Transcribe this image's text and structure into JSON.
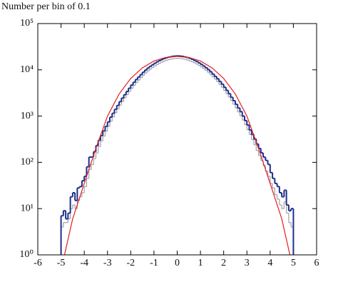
{
  "chart_data": {
    "type": "histogram",
    "title": "Number per bin of 0.1",
    "bins": [
      -5.0,
      -4.9,
      -4.8,
      -4.7,
      -4.6,
      -4.5,
      -4.4,
      -4.3,
      -4.2,
      -4.1,
      -4.0,
      -3.9,
      -3.8,
      -3.7,
      -3.6,
      -3.5,
      -3.4,
      -3.3,
      -3.2,
      -3.1,
      -3.0,
      -2.9,
      -2.8,
      -2.7,
      -2.6,
      -2.5,
      -2.4,
      -2.3,
      -2.2,
      -2.1,
      -2.0,
      -1.9,
      -1.8,
      -1.7,
      -1.6,
      -1.5,
      -1.4,
      -1.3,
      -1.2,
      -1.1,
      -1.0,
      -0.9,
      -0.8,
      -0.7,
      -0.6,
      -0.5,
      -0.4,
      -0.3,
      -0.2,
      -0.1,
      0.0,
      0.1,
      0.2,
      0.3,
      0.4,
      0.5,
      0.6,
      0.7,
      0.8,
      0.9,
      1.0,
      1.1,
      1.2,
      1.3,
      1.4,
      1.5,
      1.6,
      1.7,
      1.8,
      1.9,
      2.0,
      2.1,
      2.2,
      2.3,
      2.4,
      2.5,
      2.6,
      2.7,
      2.8,
      2.9,
      3.0,
      3.1,
      3.2,
      3.3,
      3.4,
      3.5,
      3.6,
      3.7,
      3.8,
      3.9,
      4.0,
      4.1,
      4.2,
      4.3,
      4.4,
      4.5,
      4.6,
      4.7,
      4.8,
      4.9,
      5.0
    ],
    "series": [
      {
        "color": "#1f2f8a",
        "values": [
          7,
          9,
          6,
          8,
          18,
          22,
          15,
          28,
          30,
          40,
          50,
          80,
          130,
          130,
          170,
          230,
          300,
          380,
          480,
          600,
          750,
          950,
          1150,
          1400,
          1700,
          2050,
          2450,
          2900,
          3400,
          4000,
          4700,
          5400,
          6200,
          7000,
          7900,
          8900,
          9900,
          10900,
          11900,
          12900,
          13900,
          14900,
          15800,
          16700,
          17500,
          18200,
          18800,
          19300,
          19700,
          19900,
          20000,
          19800,
          19500,
          19000,
          18400,
          17700,
          16900,
          16000,
          15100,
          14100,
          13100,
          12100,
          11100,
          10100,
          9100,
          8100,
          7200,
          6400,
          5600,
          4900,
          4200,
          3600,
          3050,
          2550,
          2150,
          1800,
          1500,
          1250,
          1000,
          800,
          640,
          500,
          400,
          320,
          250,
          200,
          160,
          130,
          110,
          90,
          60,
          45,
          35,
          30,
          22,
          18,
          25,
          12,
          9,
          10
        ]
      },
      {
        "color": "#a0a0a8",
        "values": [
          4,
          5,
          5,
          6,
          10,
          12,
          10,
          15,
          18,
          22,
          30,
          45,
          70,
          90,
          120,
          160,
          220,
          290,
          370,
          470,
          600,
          770,
          960,
          1180,
          1430,
          1720,
          2080,
          2480,
          2920,
          3430,
          4000,
          4620,
          5300,
          6000,
          6800,
          7650,
          8550,
          9450,
          10350,
          11250,
          12150,
          13050,
          13900,
          14700,
          15450,
          16100,
          16650,
          17100,
          17400,
          17600,
          17700,
          17550,
          17250,
          16850,
          16300,
          15650,
          14950,
          14150,
          13350,
          12450,
          11550,
          10650,
          9750,
          8850,
          7950,
          7100,
          6300,
          5550,
          4850,
          4200,
          3600,
          3050,
          2580,
          2160,
          1800,
          1490,
          1230,
          1010,
          820,
          650,
          510,
          400,
          310,
          240,
          180,
          140,
          110,
          85,
          65,
          50,
          35,
          28,
          20,
          16,
          12,
          10,
          14,
          8,
          5,
          4
        ]
      }
    ],
    "curve": {
      "color": "#e02020",
      "x": [
        -4.85,
        -4.5,
        -4,
        -3.5,
        -3,
        -2.5,
        -2,
        -1.5,
        -1,
        -0.5,
        0,
        0.5,
        1,
        1.5,
        2,
        2.5,
        3,
        3.5,
        4,
        4.5,
        4.85
      ],
      "values": [
        1,
        6,
        35,
        200,
        1000,
        3000,
        6500,
        11000,
        15500,
        18500,
        19500,
        18500,
        15500,
        11000,
        6500,
        3000,
        1000,
        200,
        35,
        6,
        1
      ]
    },
    "log_y": true,
    "xlim": [
      -6,
      6
    ],
    "xticks": [
      -6,
      -5,
      -4,
      -3,
      -2,
      -1,
      0,
      1,
      2,
      3,
      4,
      5,
      6
    ],
    "ylim": [
      1,
      100000
    ],
    "yticks": [
      {
        "value": 1,
        "label": "10⁰"
      },
      {
        "value": 10,
        "label": "10¹"
      },
      {
        "value": 100,
        "label": "10²"
      },
      {
        "value": 1000,
        "label": "10³"
      },
      {
        "value": 10000,
        "label": "10⁴"
      },
      {
        "value": 100000,
        "label": "10⁵"
      }
    ]
  }
}
